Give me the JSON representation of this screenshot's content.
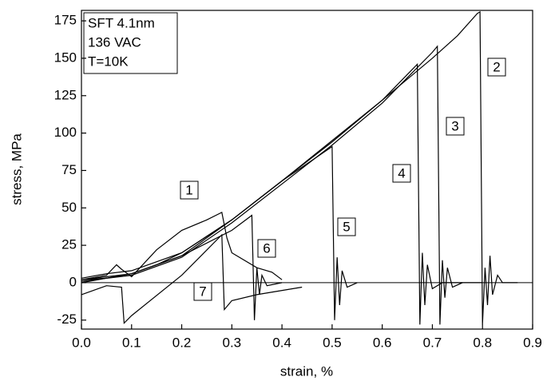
{
  "chart_data": {
    "type": "line",
    "x_label": "strain, %",
    "y_label": "stress, MPa",
    "annotations": [
      "SFT 4.1nm",
      "136 VAC",
      "T=10K"
    ],
    "xlim": [
      0,
      0.9
    ],
    "ylim": [
      -31,
      182
    ],
    "xticks": [
      {
        "value": 0,
        "label": "0.0"
      },
      0.1,
      0.2,
      0.3,
      0.4,
      0.5,
      0.6,
      0.7,
      0.8,
      0.9
    ],
    "yticks": [
      -25,
      0,
      25,
      50,
      75,
      100,
      125,
      150,
      175
    ],
    "zero_line": true,
    "series": [
      {
        "name": "1",
        "color": "#000000",
        "x": [
          0,
          0.05,
          0.07,
          0.08,
          0.1,
          0.15,
          0.2,
          0.25,
          0.28,
          0.29,
          0.3,
          0.35,
          0.38,
          0.4
        ],
        "values": [
          2,
          5,
          12,
          9,
          4,
          22,
          35,
          42,
          47,
          30,
          20,
          10,
          7,
          2
        ]
      },
      {
        "name": "2",
        "color": "#000000",
        "x": [
          0,
          0.05,
          0.1,
          0.15,
          0.2,
          0.3,
          0.4,
          0.5,
          0.6,
          0.7,
          0.75,
          0.79,
          0.795,
          0.8,
          0.805,
          0.81,
          0.815,
          0.82,
          0.83,
          0.84,
          0.87
        ],
        "values": [
          2,
          3,
          6,
          12,
          20,
          42,
          68,
          95,
          122,
          150,
          165,
          180,
          181,
          -28,
          10,
          -15,
          18,
          -8,
          5,
          0,
          0
        ]
      },
      {
        "name": "3",
        "color": "#000000",
        "x": [
          0,
          0.1,
          0.2,
          0.3,
          0.4,
          0.5,
          0.6,
          0.7,
          0.71,
          0.715,
          0.72,
          0.725,
          0.73,
          0.74,
          0.76,
          0.8
        ],
        "values": [
          1,
          5,
          17,
          40,
          66,
          92,
          120,
          154,
          158,
          -28,
          15,
          -10,
          10,
          -3,
          0,
          0
        ]
      },
      {
        "name": "4",
        "color": "#000000",
        "x": [
          0,
          0.1,
          0.2,
          0.3,
          0.4,
          0.5,
          0.6,
          0.67,
          0.675,
          0.68,
          0.685,
          0.69,
          0.7,
          0.72,
          0.76
        ],
        "values": [
          0,
          6,
          18,
          42,
          68,
          94,
          122,
          146,
          -28,
          20,
          -15,
          12,
          -4,
          0,
          0
        ]
      },
      {
        "name": "5",
        "color": "#000000",
        "x": [
          0,
          0.05,
          0.1,
          0.2,
          0.3,
          0.4,
          0.5,
          0.505,
          0.51,
          0.515,
          0.52,
          0.53,
          0.55
        ],
        "values": [
          3,
          6,
          8,
          20,
          42,
          68,
          91,
          -25,
          17,
          -15,
          8,
          -3,
          0
        ]
      },
      {
        "name": "6",
        "color": "#000000",
        "x": [
          0,
          0.1,
          0.2,
          0.3,
          0.34,
          0.345,
          0.35,
          0.355,
          0.36,
          0.37,
          0.4
        ],
        "values": [
          2,
          6,
          18,
          35,
          45,
          -25,
          10,
          -8,
          5,
          -2,
          0
        ]
      },
      {
        "name": "7",
        "color": "#000000",
        "x": [
          0,
          0.05,
          0.08,
          0.085,
          0.1,
          0.2,
          0.28,
          0.285,
          0.3,
          0.35,
          0.44
        ],
        "values": [
          -8,
          -2,
          -3,
          -27,
          -22,
          5,
          32,
          -18,
          -12,
          -8,
          -3
        ]
      }
    ]
  }
}
